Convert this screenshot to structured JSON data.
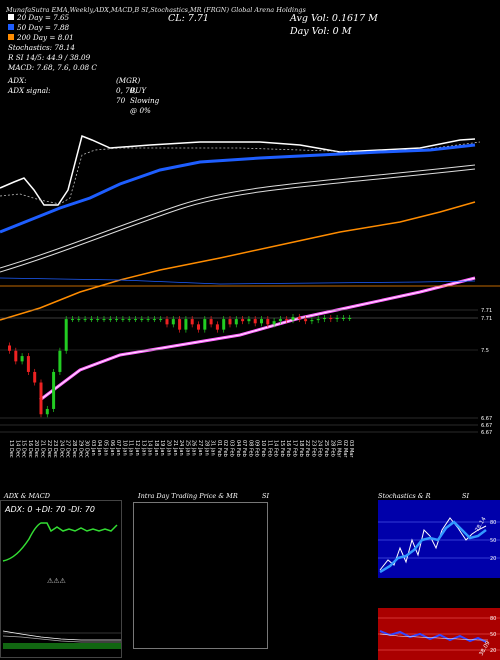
{
  "header": {
    "strip": "MunafaSutra EMA,Weekly,ADX,MACD,B    SI,Stochastics,MR    (FRGN) Global Arena Holdings",
    "cl": "CL: 7.71",
    "avg_vol": "Avg Vol: 0.1617 M",
    "day_vol": "Day Vol: 0   M",
    "ema20": "20  Day = 7.65",
    "ema50": "50  Day = 7.88",
    "ema200": "200  Day = 8.01",
    "stochastics": "Stochastics: 78.14",
    "rsi": "R      SI 14/5: 44.9 / 38.09",
    "macd": "MACD: 7.68, 7.6, 0.08  C",
    "adx": "ADX:",
    "adx_mid": "(MGR) 0, 70, 70",
    "adx_signal": "ADX  signal:",
    "buy": "BUY Slowing @ 0%"
  },
  "price_axis": {
    "labels": [
      "7.71",
      "7.71",
      "7.5",
      "6.67",
      "6.67",
      "6.67"
    ]
  },
  "dates": [
    "13 Dec",
    "14 Dec",
    "15 Dec",
    "16 Dec",
    "20 Dec",
    "21 Dec",
    "22 Dec",
    "23 Dec",
    "24 Dec",
    "27 Dec",
    "28 Dec",
    "29 Dec",
    "30 Dec",
    "03 Jan",
    "04 Jan",
    "05 Jan",
    "06 Jan",
    "07 Jan",
    "10 Jan",
    "11 Jan",
    "12 Jan",
    "13 Jan",
    "14 Jan",
    "18 Jan",
    "19 Jan",
    "20 Jan",
    "21 Jan",
    "24 Jan",
    "25 Jan",
    "26 Jan",
    "27 Jan",
    "28 Jan",
    "31 Jan",
    "01 Feb",
    "02 Feb",
    "03 Feb",
    "04 Feb",
    "07 Feb",
    "08 Feb",
    "09 Feb",
    "10 Feb",
    "11 Feb",
    "14 Feb",
    "15 Feb",
    "16 Feb",
    "17 Feb",
    "18 Feb",
    "22 Feb",
    "23 Feb",
    "24 Feb",
    "25 Feb",
    "28 Feb",
    "01 Mar",
    "02 Mar",
    "03 Mar"
  ],
  "panels": {
    "adx_title": "ADX  & MACD",
    "adx_values": "ADX: 0  +DI: 70  -DI: 70",
    "intraday_title": "Intra  Day Trading Price  & MR",
    "intraday_si": "SI",
    "stoch_title": "Stochastics & R",
    "stoch_si": "SI",
    "stoch_labels": [
      "80",
      "50",
      "20"
    ],
    "stoch_value": "78.14",
    "rsi_labels": [
      "80",
      "50",
      "20"
    ],
    "rsi_value": "38.09"
  },
  "colors": {
    "ema20": "#ffffff",
    "ema50": "#1e5eff",
    "ema200": "#ff8c00",
    "bullish": "#22cc22",
    "bearish": "#ee2222",
    "rsi_bg": "#aa0000",
    "stoch_bg": "#0000aa",
    "macd": "#33dd33"
  },
  "chart_data": {
    "type": "candlestick",
    "series": [
      {
        "kind": "candles",
        "open": [
          7.45,
          7.4,
          7.3,
          7.35,
          7.2,
          7.1,
          6.8,
          6.85,
          7.2,
          7.4,
          7.7,
          7.7,
          7.7,
          7.7,
          7.7,
          7.7,
          7.7,
          7.7,
          7.7,
          7.7,
          7.7,
          7.7,
          7.7,
          7.7,
          7.7,
          7.7,
          7.65,
          7.7,
          7.6,
          7.7,
          7.65,
          7.6,
          7.7,
          7.65,
          7.6,
          7.7,
          7.65,
          7.7,
          7.68,
          7.7,
          7.66,
          7.7,
          7.65,
          7.68,
          7.7,
          7.69,
          7.72,
          7.7,
          7.68,
          7.69,
          7.7,
          7.71,
          7.7,
          7.71,
          7.71
        ],
        "close": [
          7.4,
          7.3,
          7.35,
          7.2,
          7.1,
          6.8,
          6.85,
          7.2,
          7.4,
          7.7,
          7.7,
          7.7,
          7.7,
          7.7,
          7.7,
          7.7,
          7.7,
          7.7,
          7.7,
          7.7,
          7.7,
          7.7,
          7.7,
          7.7,
          7.7,
          7.65,
          7.7,
          7.6,
          7.7,
          7.65,
          7.6,
          7.7,
          7.65,
          7.6,
          7.7,
          7.65,
          7.7,
          7.68,
          7.7,
          7.66,
          7.7,
          7.65,
          7.68,
          7.7,
          7.69,
          7.72,
          7.7,
          7.68,
          7.69,
          7.7,
          7.71,
          7.7,
          7.71,
          7.71,
          7.71
        ]
      }
    ],
    "ema": {
      "20": 7.65,
      "50": 7.88,
      "200": 8.01
    }
  }
}
